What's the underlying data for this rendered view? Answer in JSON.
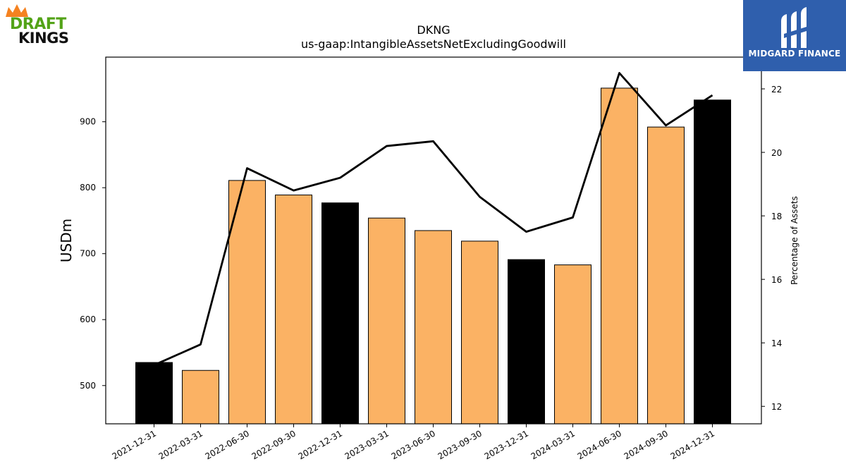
{
  "chart_data": {
    "type": "bar",
    "title": "DKNG",
    "subtitle": "us-gaap:IntangibleAssetsNetExcludingGoodwill",
    "ylabel": "USDm",
    "y2label": "Percentage of Assets",
    "categories": [
      "2021-12-31",
      "2022-03-31",
      "2022-06-30",
      "2022-09-30",
      "2022-12-31",
      "2023-03-31",
      "2023-06-30",
      "2023-09-30",
      "2023-12-31",
      "2024-03-31",
      "2024-06-30",
      "2024-09-30",
      "2024-12-31"
    ],
    "series": [
      {
        "type": "bar",
        "values": [
          535,
          523,
          811,
          789,
          777,
          754,
          735,
          719,
          691,
          683,
          951,
          892,
          933
        ],
        "colors": [
          "#000000",
          "#fbb264",
          "#fbb264",
          "#fbb264",
          "#000000",
          "#fbb264",
          "#fbb264",
          "#fbb264",
          "#000000",
          "#fbb264",
          "#fbb264",
          "#fbb264",
          "#000000"
        ]
      },
      {
        "type": "line",
        "axis": "right",
        "values": [
          13.3,
          13.95,
          19.5,
          18.8,
          19.2,
          20.2,
          20.35,
          18.6,
          17.5,
          17.95,
          22.5,
          20.85,
          21.8
        ],
        "color": "#000000"
      }
    ],
    "ylim": [
      442,
      998
    ],
    "y2lim": [
      11.45,
      23.0
    ],
    "yticks": [
      500,
      600,
      700,
      800,
      900
    ],
    "y2ticks": [
      12,
      14,
      16,
      18,
      20,
      22
    ],
    "grid": false,
    "legend": "none"
  },
  "logos": {
    "left": {
      "name": "draftkings-logo",
      "line1": "DRAFT",
      "line2": "KINGS"
    },
    "right": {
      "name": "midgard-finance-logo",
      "text": "MIDGARD FINANCE"
    }
  }
}
